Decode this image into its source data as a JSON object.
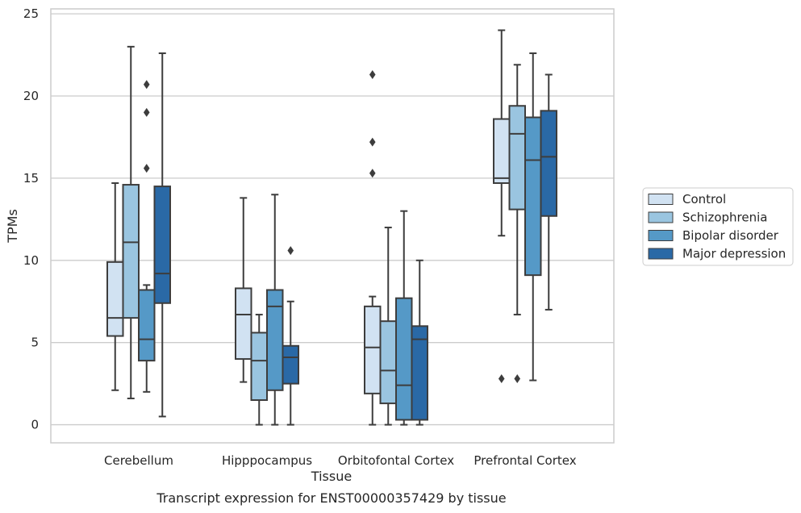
{
  "chart_data": {
    "type": "box",
    "title": "",
    "caption": "Transcript expression for ENST00000357429 by tissue",
    "xlabel": "Tissue",
    "ylabel": "TPMs",
    "ylim": [
      -1.1,
      25.3
    ],
    "yticks": [
      0,
      5,
      10,
      15,
      20,
      25
    ],
    "grid": "horizontal",
    "legend_position": "right",
    "categories": [
      "Cerebellum",
      "Hipppocampus",
      "Orbitofontal Cortex",
      "Prefrontal Cortex"
    ],
    "series": [
      {
        "name": "Control",
        "color": "#d1e2f2",
        "boxes": [
          {
            "whislo": 2.1,
            "q1": 5.4,
            "med": 6.5,
            "q3": 9.9,
            "whishi": 14.7,
            "fliers": []
          },
          {
            "whislo": 2.6,
            "q1": 4.0,
            "med": 6.7,
            "q3": 8.3,
            "whishi": 13.8,
            "fliers": []
          },
          {
            "whislo": 0.0,
            "q1": 1.9,
            "med": 4.7,
            "q3": 7.2,
            "whishi": 7.8,
            "fliers": [
              15.3,
              17.2,
              21.3
            ]
          },
          {
            "whislo": 11.5,
            "q1": 14.7,
            "med": 15.0,
            "q3": 18.6,
            "whishi": 24.0,
            "fliers": [
              2.8
            ]
          }
        ]
      },
      {
        "name": "Schizophrenia",
        "color": "#9ac5e0",
        "boxes": [
          {
            "whislo": 1.6,
            "q1": 6.5,
            "med": 11.1,
            "q3": 14.6,
            "whishi": 23.0,
            "fliers": []
          },
          {
            "whislo": 0.0,
            "q1": 1.5,
            "med": 3.9,
            "q3": 5.6,
            "whishi": 6.7,
            "fliers": []
          },
          {
            "whislo": 0.0,
            "q1": 1.3,
            "med": 3.3,
            "q3": 6.3,
            "whishi": 12.0,
            "fliers": []
          },
          {
            "whislo": 6.7,
            "q1": 13.1,
            "med": 17.7,
            "q3": 19.4,
            "whishi": 21.9,
            "fliers": [
              2.8
            ]
          }
        ]
      },
      {
        "name": "Bipolar disorder",
        "color": "#5599c7",
        "boxes": [
          {
            "whislo": 2.0,
            "q1": 3.9,
            "med": 5.2,
            "q3": 8.2,
            "whishi": 8.5,
            "fliers": [
              15.6,
              19.0,
              20.7
            ]
          },
          {
            "whislo": 0.0,
            "q1": 2.1,
            "med": 7.2,
            "q3": 8.2,
            "whishi": 14.0,
            "fliers": []
          },
          {
            "whislo": 0.0,
            "q1": 0.3,
            "med": 2.4,
            "q3": 7.7,
            "whishi": 13.0,
            "fliers": []
          },
          {
            "whislo": 2.7,
            "q1": 9.1,
            "med": 16.1,
            "q3": 18.7,
            "whishi": 22.6,
            "fliers": []
          }
        ]
      },
      {
        "name": "Major depression",
        "color": "#2a69a6",
        "boxes": [
          {
            "whislo": 0.5,
            "q1": 7.4,
            "med": 9.2,
            "q3": 14.5,
            "whishi": 22.6,
            "fliers": []
          },
          {
            "whislo": 0.0,
            "q1": 2.5,
            "med": 4.1,
            "q3": 4.8,
            "whishi": 7.5,
            "fliers": [
              10.6
            ]
          },
          {
            "whislo": 0.0,
            "q1": 0.3,
            "med": 5.2,
            "q3": 6.0,
            "whishi": 10.0,
            "fliers": []
          },
          {
            "whislo": 7.0,
            "q1": 12.7,
            "med": 16.3,
            "q3": 19.1,
            "whishi": 21.3,
            "fliers": []
          }
        ]
      }
    ]
  }
}
